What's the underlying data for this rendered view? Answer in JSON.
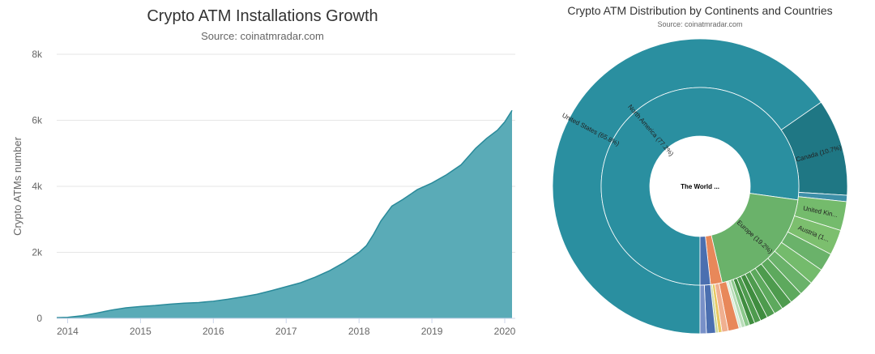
{
  "left_chart": {
    "title": "Crypto ATM Installations Growth",
    "subtitle": "Source: coinatmradar.com",
    "ylabel": "Crypto ATMs number"
  },
  "right_chart": {
    "title": "Crypto ATM Distribution by Continents and Countries",
    "subtitle": "Source: coinatmradar.com",
    "center_label": "The World ..."
  },
  "colors": {
    "area_fill": "#5aabb7",
    "area_line": "#2a8a9a",
    "north_america": "#2a8fa0",
    "canada": "#1f7784",
    "europe": "#6ab26a",
    "europe_country": "#7cbf6e",
    "other_orange": "#e8885a"
  },
  "chart_data": [
    {
      "type": "area",
      "title": "Crypto ATM Installations Growth",
      "subtitle": "Source: coinatmradar.com",
      "ylabel": "Crypto ATMs number",
      "xlabel": "",
      "x_ticks": [
        "2014",
        "2015",
        "2016",
        "2017",
        "2018",
        "2019",
        "2020"
      ],
      "y_ticks": [
        "0",
        "2k",
        "4k",
        "6k",
        "8k"
      ],
      "ylim": [
        0,
        8000
      ],
      "xlim": [
        2013.85,
        2020.1
      ],
      "grid": true,
      "series": [
        {
          "x": [
            2013.85,
            2014.0,
            2014.2,
            2014.4,
            2014.6,
            2014.8,
            2015.0,
            2015.2,
            2015.4,
            2015.6,
            2015.8,
            2016.0,
            2016.2,
            2016.4,
            2016.6,
            2016.8,
            2017.0,
            2017.2,
            2017.4,
            2017.6,
            2017.8,
            2018.0,
            2018.1,
            2018.2,
            2018.3,
            2018.45,
            2018.6,
            2018.8,
            2019.0,
            2019.2,
            2019.4,
            2019.5,
            2019.6,
            2019.75,
            2019.9,
            2020.0,
            2020.1
          ],
          "y": [
            20,
            30,
            80,
            160,
            250,
            320,
            360,
            390,
            430,
            460,
            480,
            520,
            580,
            650,
            730,
            840,
            960,
            1080,
            1250,
            1450,
            1700,
            2000,
            2200,
            2550,
            2950,
            3400,
            3600,
            3900,
            4100,
            4350,
            4650,
            4900,
            5150,
            5450,
            5700,
            5950,
            6300
          ]
        }
      ]
    },
    {
      "type": "pie",
      "title": "Crypto ATM Distribution by Continents and Countries",
      "subtitle": "Source: coinatmradar.com",
      "center": "The World ...",
      "inner_ring": [
        {
          "label": "North America (77.2%)",
          "value": 77.2,
          "color": "#2a8fa0"
        },
        {
          "label": "Europe (19.2%)",
          "value": 19.2,
          "color": "#6ab26a"
        },
        {
          "label": "",
          "value": 1.9,
          "color": "#e8885a"
        },
        {
          "label": "",
          "value": 1.7,
          "color": "#4b6fb0"
        }
      ],
      "outer_ring": [
        {
          "label": "United States (65.8%)",
          "value": 65.8,
          "color": "#2a8fa0"
        },
        {
          "label": "Canada (10.7%)",
          "value": 10.7,
          "color": "#1f7784"
        },
        {
          "label": "",
          "value": 0.7,
          "color": "#3d8fa8"
        },
        {
          "label": "United Kin...",
          "value": 3.2,
          "color": "#74bb6c"
        },
        {
          "label": "Austria (1...",
          "value": 2.8,
          "color": "#7cbf6e"
        },
        {
          "label": "",
          "value": 2.0,
          "color": "#6ab26a"
        },
        {
          "label": "",
          "value": 1.8,
          "color": "#74bb6c"
        },
        {
          "label": "",
          "value": 1.6,
          "color": "#6ab26a"
        },
        {
          "label": "",
          "value": 1.4,
          "color": "#5da95d"
        },
        {
          "label": "",
          "value": 1.2,
          "color": "#4e9b4e"
        },
        {
          "label": "",
          "value": 1.0,
          "color": "#5da95d"
        },
        {
          "label": "",
          "value": 0.9,
          "color": "#4e9b4e"
        },
        {
          "label": "",
          "value": 0.8,
          "color": "#3f8d3f"
        },
        {
          "label": "",
          "value": 0.7,
          "color": "#4e9b4e"
        },
        {
          "label": "",
          "value": 0.6,
          "color": "#3f8d3f"
        },
        {
          "label": "",
          "value": 0.5,
          "color": "#8cc98c"
        },
        {
          "label": "",
          "value": 0.4,
          "color": "#b8dcb8"
        },
        {
          "label": "",
          "value": 0.3,
          "color": "#d8ecd8"
        },
        {
          "label": "",
          "value": 1.2,
          "color": "#e8885a"
        },
        {
          "label": "",
          "value": 0.7,
          "color": "#f0b090"
        },
        {
          "label": "",
          "value": 0.4,
          "color": "#e8c860"
        },
        {
          "label": "",
          "value": 0.3,
          "color": "#c8d8a0"
        },
        {
          "label": "",
          "value": 1.0,
          "color": "#4b6fb0"
        },
        {
          "label": "",
          "value": 0.7,
          "color": "#7890c8"
        }
      ]
    }
  ]
}
